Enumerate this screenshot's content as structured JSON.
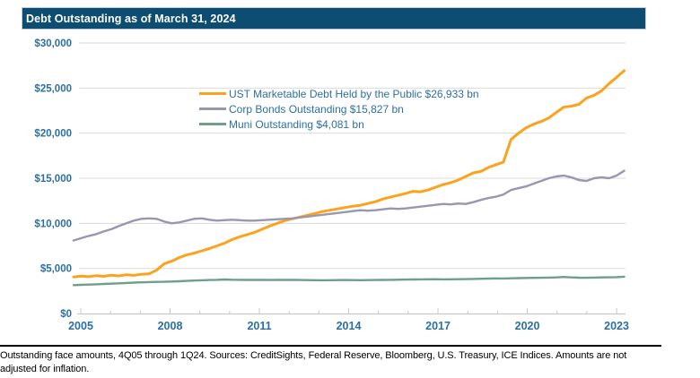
{
  "title": "Debt Outstanding as of March 31, 2024",
  "footnote": "Outstanding face amounts, 4Q05 through 1Q24. Sources: CreditSights, Federal Reserve, Bloomberg, U.S. Treasury, ICE Indices. Amounts are not adjusted for inflation.",
  "colors": {
    "title_bar_bg": "#0E4D72",
    "title_text": "#FFFFFF",
    "axis_text": "#2C6FA5",
    "gridline": "#DBDBDB",
    "axis_line": "#C9C9C9",
    "footnote_text": "#000000"
  },
  "chart_data": {
    "type": "line",
    "title": "Debt Outstanding as of March 31, 2024",
    "x_axis": {
      "unit": "quarterly",
      "start_quarter": "4Q05",
      "end_quarter": "1Q24",
      "points": 74,
      "tick_years_labeled": [
        "2005",
        "2008",
        "2011",
        "2014",
        "2017",
        "2020",
        "2023"
      ],
      "minor_ticks": "yearly"
    },
    "y_axis": {
      "unit": "$ bn",
      "ylim": [
        0,
        30000
      ],
      "ticks": [
        0,
        5000,
        10000,
        15000,
        20000,
        25000,
        30000
      ],
      "tick_labels": [
        "$0",
        "$5,000",
        "$10,000",
        "$15,000",
        "$20,000",
        "$25,000",
        "$30,000"
      ]
    },
    "grid": "horizontal-only",
    "legend_position": "upper-left-of-center",
    "series": [
      {
        "id": "ust",
        "name": "UST Marketable Debt Held by the Public",
        "latest_value_bn": 26933,
        "legend_label": "UST Marketable Debt Held by the Public $26,933 bn",
        "color": "#FCA31E",
        "stroke_width": 3,
        "values": [
          4050,
          4150,
          4080,
          4200,
          4120,
          4250,
          4170,
          4300,
          4230,
          4350,
          4400,
          4800,
          5500,
          5800,
          6200,
          6500,
          6700,
          6950,
          7200,
          7500,
          7800,
          8200,
          8500,
          8750,
          9000,
          9350,
          9700,
          10000,
          10300,
          10500,
          10700,
          10900,
          11100,
          11300,
          11450,
          11600,
          11750,
          11900,
          12000,
          12200,
          12400,
          12700,
          12900,
          13100,
          13300,
          13550,
          13500,
          13700,
          14000,
          14300,
          14500,
          14800,
          15200,
          15600,
          15750,
          16200,
          16500,
          16800,
          19300,
          20000,
          20600,
          21000,
          21300,
          21700,
          22300,
          22900,
          23000,
          23200,
          23900,
          24200,
          24700,
          25500,
          26200,
          26933
        ]
      },
      {
        "id": "corp",
        "name": "Corp Bonds Outstanding",
        "latest_value_bn": 15827,
        "legend_label": "Corp Bonds Outstanding $15,827  bn",
        "color": "#9897B1",
        "stroke_width": 2.4,
        "values": [
          8100,
          8350,
          8600,
          8800,
          9100,
          9350,
          9700,
          10000,
          10300,
          10500,
          10550,
          10500,
          10200,
          10000,
          10100,
          10300,
          10500,
          10550,
          10400,
          10300,
          10350,
          10400,
          10350,
          10300,
          10300,
          10350,
          10400,
          10450,
          10500,
          10550,
          10650,
          10750,
          10850,
          10950,
          11050,
          11150,
          11250,
          11350,
          11450,
          11400,
          11450,
          11550,
          11650,
          11600,
          11650,
          11750,
          11850,
          11950,
          12050,
          12150,
          12100,
          12200,
          12150,
          12350,
          12600,
          12800,
          12950,
          13200,
          13700,
          13900,
          14100,
          14400,
          14700,
          15000,
          15200,
          15300,
          15100,
          14800,
          14700,
          15000,
          15100,
          15000,
          15300,
          15827
        ]
      },
      {
        "id": "muni",
        "name": "Muni Outstanding",
        "latest_value_bn": 4081,
        "legend_label": "Muni Outstanding $4,081 bn",
        "color": "#6F9E8B",
        "stroke_width": 2.4,
        "values": [
          3150,
          3180,
          3210,
          3240,
          3280,
          3310,
          3350,
          3390,
          3430,
          3460,
          3490,
          3510,
          3520,
          3550,
          3580,
          3620,
          3660,
          3690,
          3720,
          3740,
          3770,
          3750,
          3740,
          3730,
          3740,
          3730,
          3720,
          3730,
          3740,
          3730,
          3720,
          3710,
          3700,
          3690,
          3700,
          3710,
          3720,
          3710,
          3700,
          3710,
          3720,
          3730,
          3740,
          3750,
          3760,
          3770,
          3780,
          3790,
          3800,
          3780,
          3790,
          3800,
          3810,
          3830,
          3850,
          3870,
          3890,
          3880,
          3900,
          3920,
          3940,
          3950,
          3960,
          3980,
          4000,
          4050,
          4000,
          3970,
          3960,
          3980,
          4000,
          4010,
          4030,
          4081
        ]
      }
    ]
  }
}
